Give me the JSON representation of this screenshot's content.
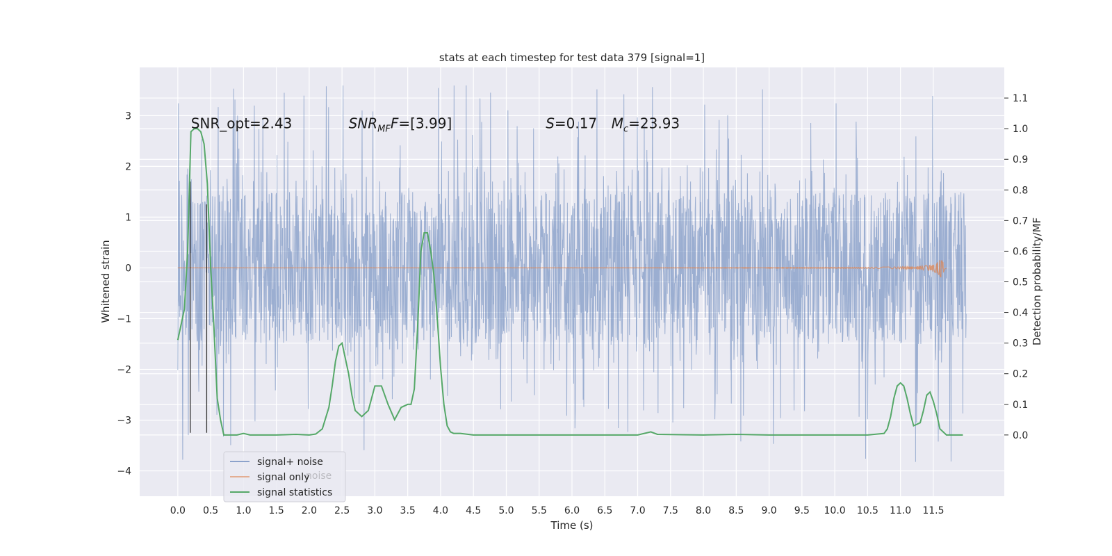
{
  "chart_data": {
    "type": "line",
    "title": "stats at each timestep for test data 379 [signal=1]",
    "xlabel": "Time (s)",
    "ylabel": "Whitened strain",
    "ylabel_right": "Detection probability/MF",
    "xlim": [
      -0.58,
      12.58
    ],
    "ylim": [
      -4.5,
      3.95
    ],
    "ylim_right": [
      -0.2,
      1.2
    ],
    "xticks": [
      0.0,
      0.5,
      1.0,
      1.5,
      2.0,
      2.5,
      3.0,
      3.5,
      4.0,
      4.5,
      5.0,
      5.5,
      6.0,
      6.5,
      7.0,
      7.5,
      8.0,
      8.5,
      9.0,
      9.5,
      10.0,
      10.5,
      11.0,
      11.5
    ],
    "xtick_labels": [
      "0.0",
      "0.5",
      "1.0",
      "1.5",
      "2.0",
      "2.5",
      "3.0",
      "3.5",
      "4.0",
      "4.5",
      "5.0",
      "5.5",
      "6.0",
      "6.5",
      "7.0",
      "7.5",
      "8.0",
      "8.5",
      "9.0",
      "9.5",
      "10.0",
      "10.5",
      "11.0",
      "11.5"
    ],
    "yticks": [
      -4,
      -3,
      -2,
      -1,
      0,
      1,
      2,
      3
    ],
    "ytick_labels": [
      "−4",
      "−3",
      "−2",
      "−1",
      "0",
      "1",
      "2",
      "3"
    ],
    "yticks_right": [
      0.0,
      0.1,
      0.2,
      0.3,
      0.4,
      0.5,
      0.6,
      0.7,
      0.8,
      0.9,
      1.0,
      1.1
    ],
    "ytick_labels_right": [
      "0.0",
      "0.1",
      "0.2",
      "0.3",
      "0.4",
      "0.5",
      "0.6",
      "0.7",
      "0.8",
      "0.9",
      "1.0",
      "1.1"
    ],
    "grid": true,
    "legend_position": "lower-left",
    "legend": [
      "signal+ noise",
      "signal only",
      "signal statistics"
    ],
    "legend_ghost_text": "noise",
    "annotations": [
      {
        "id": "snr-opt",
        "text": "SNR_opt=2.43",
        "x": 0.2,
        "y": 2.75
      },
      {
        "id": "snr-mf",
        "text": "SNR",
        "sub": "MF",
        "rest": "F=[3.99]",
        "x": 2.6,
        "y": 2.75
      },
      {
        "id": "s-val",
        "text": "S",
        "rest": "=0.17",
        "x": 5.6,
        "y": 2.75
      },
      {
        "id": "mc-val",
        "text": "M",
        "sub": "c",
        "rest": "=23.93",
        "x": 6.6,
        "y": 2.75
      }
    ],
    "vlines": [
      {
        "x": 0.19,
        "y0": -3.25,
        "y1": 1.7
      },
      {
        "x": 0.44,
        "y0": -3.25,
        "y1": 1.25
      }
    ],
    "series": [
      {
        "name": "signal+ noise",
        "color": "#4c72b0",
        "description_kind": "noise",
        "t_start": 0.0,
        "t_end": 12.0,
        "core_amplitude": 1.5,
        "spike_max": 3.6,
        "spike_min": -4.1
      },
      {
        "name": "signal only",
        "color": "#dd8452",
        "t_start": 0.0,
        "t_end": 11.7,
        "peak_time": 11.65,
        "peak_amplitude": 0.52
      },
      {
        "name": "signal statistics",
        "color": "#55a868",
        "axis": "right",
        "x": [
          0.0,
          0.05,
          0.1,
          0.15,
          0.2,
          0.25,
          0.3,
          0.35,
          0.4,
          0.45,
          0.5,
          0.55,
          0.6,
          0.65,
          0.7,
          0.8,
          0.9,
          1.0,
          1.1,
          1.2,
          1.5,
          1.8,
          2.0,
          2.1,
          2.2,
          2.3,
          2.35,
          2.4,
          2.45,
          2.5,
          2.55,
          2.6,
          2.65,
          2.7,
          2.8,
          2.9,
          3.0,
          3.1,
          3.2,
          3.3,
          3.4,
          3.5,
          3.55,
          3.6,
          3.65,
          3.7,
          3.75,
          3.8,
          3.85,
          3.9,
          3.95,
          4.0,
          4.05,
          4.1,
          4.15,
          4.2,
          4.3,
          4.5,
          5.0,
          6.0,
          7.0,
          7.2,
          7.3,
          8.0,
          8.5,
          9.0,
          10.0,
          10.5,
          10.75,
          10.8,
          10.85,
          10.9,
          10.95,
          11.0,
          11.05,
          11.1,
          11.15,
          11.2,
          11.3,
          11.35,
          11.4,
          11.45,
          11.5,
          11.55,
          11.6,
          11.7,
          11.8,
          11.9,
          11.95
        ],
        "y": [
          0.31,
          0.36,
          0.41,
          0.6,
          0.99,
          1.0,
          1.0,
          0.99,
          0.95,
          0.82,
          0.55,
          0.35,
          0.12,
          0.05,
          0.0,
          0.0,
          0.0,
          0.005,
          0.0,
          0.0,
          0.0,
          0.002,
          0.0,
          0.003,
          0.02,
          0.09,
          0.16,
          0.24,
          0.29,
          0.3,
          0.25,
          0.2,
          0.13,
          0.08,
          0.06,
          0.08,
          0.16,
          0.16,
          0.1,
          0.05,
          0.09,
          0.1,
          0.1,
          0.15,
          0.35,
          0.6,
          0.66,
          0.66,
          0.6,
          0.52,
          0.38,
          0.22,
          0.1,
          0.03,
          0.01,
          0.005,
          0.005,
          0.0,
          0.0,
          0.0,
          0.0,
          0.01,
          0.002,
          0.0,
          0.002,
          0.0,
          0.0,
          0.0,
          0.005,
          0.02,
          0.06,
          0.12,
          0.16,
          0.17,
          0.16,
          0.12,
          0.07,
          0.03,
          0.04,
          0.08,
          0.13,
          0.14,
          0.11,
          0.07,
          0.02,
          0.0,
          0.0,
          0.0,
          0.0
        ]
      }
    ]
  }
}
